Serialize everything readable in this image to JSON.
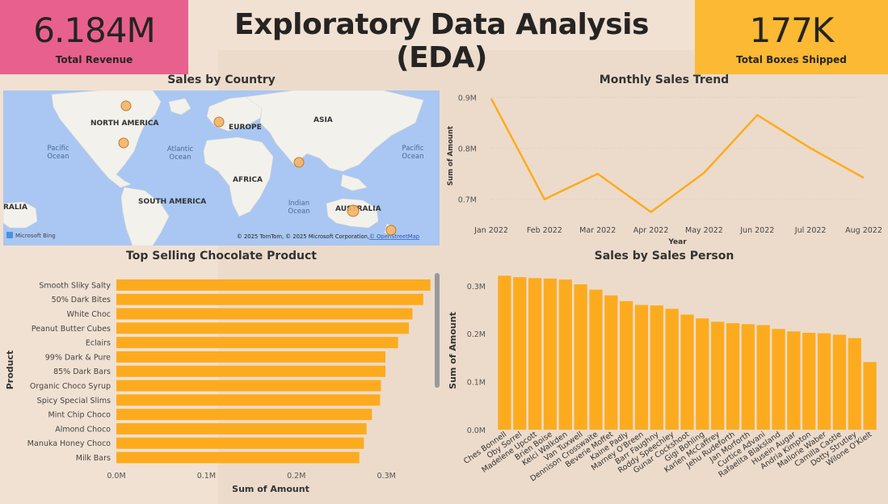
{
  "header": {
    "title": "Exploratory Data Analysis (EDA)",
    "kpis": [
      {
        "value": "6.184M",
        "label": "Total Revenue",
        "color": "#e8608d"
      },
      {
        "value": "177K",
        "label": "Total Boxes Shipped",
        "color": "#fbb934"
      }
    ]
  },
  "map": {
    "title": "Sales by Country",
    "labels": [
      "NORTH AMERICA",
      "EUROPE",
      "ASIA",
      "AFRICA",
      "SOUTH AMERICA",
      "AUSTRALIA",
      "RALIA"
    ],
    "ocean_labels": [
      "Pacific",
      "Ocean",
      "Atlantic",
      "Ocean",
      "Indian",
      "Ocean",
      "Pacific",
      "Ocean"
    ],
    "attribution": "© 2025 TomTom, © 2025 Microsoft Corporation,",
    "attribution_link": "© OpenStreetMap",
    "bing_label": "Microsoft Bing"
  },
  "colors": {
    "bar": "#fdab1e",
    "line": "#fdab1e",
    "water": "#a8c8f0",
    "land": "#f2f0ea"
  },
  "chart_data": [
    {
      "type": "line",
      "title": "Monthly Sales Trend",
      "xlabel": "Year",
      "ylabel": "Sum of Amount",
      "categories": [
        "Jan 2022",
        "Feb 2022",
        "Mar 2022",
        "Apr 2022",
        "May 2022",
        "Jun 2022",
        "Jul 2022",
        "Aug 2022"
      ],
      "values": [
        0.897,
        0.7,
        0.75,
        0.675,
        0.752,
        0.865,
        0.8,
        0.742
      ],
      "y_ticks": [
        {
          "v": 0.7,
          "label": "0.7M"
        },
        {
          "v": 0.8,
          "label": "0.8M"
        },
        {
          "v": 0.9,
          "label": "0.9M"
        }
      ],
      "ylim": [
        0.66,
        0.91
      ],
      "grid": true
    },
    {
      "type": "bar",
      "orientation": "horizontal",
      "title": "Top Selling Chocolate Product",
      "xlabel": "Sum of Amount",
      "ylabel": "Product",
      "categories": [
        "Smooth Sliky Salty",
        "50% Dark Bites",
        "White Choc",
        "Peanut Butter Cubes",
        "Eclairs",
        "99% Dark & Pure",
        "85% Dark Bars",
        "Organic Choco Syrup",
        "Spicy Special Slims",
        "Mint Chip Choco",
        "Almond Choco",
        "Manuka Honey Choco",
        "Milk Bars"
      ],
      "values": [
        0.349,
        0.341,
        0.329,
        0.325,
        0.313,
        0.299,
        0.299,
        0.294,
        0.293,
        0.284,
        0.278,
        0.275,
        0.27
      ],
      "x_ticks": [
        {
          "v": 0,
          "label": "0.0M"
        },
        {
          "v": 0.1,
          "label": "0.1M"
        },
        {
          "v": 0.2,
          "label": "0.2M"
        },
        {
          "v": 0.3,
          "label": "0.3M"
        }
      ],
      "xlim": [
        0,
        0.36
      ]
    },
    {
      "type": "bar",
      "title": "Sales by Sales Person",
      "xlabel": "",
      "ylabel": "Sum of Amount",
      "categories": [
        "Ches Bonnell",
        "Oby Sorrel",
        "Madelene Upcott",
        "Brien Boise",
        "Kelci Walkden",
        "Van Tuxwell",
        "Dennison Crosswaite",
        "Beverie Moffet",
        "Kaine Padly",
        "Marney O'Breen",
        "Barr Faughny",
        "Roddy Speechley",
        "Gunar Cockshoot",
        "Gigi Bohling",
        "Karlen McCaffrey",
        "Jehu Rudeforth",
        "Jan Morforth",
        "Curtice Advani",
        "Rafaelita Blaksland",
        "Husein Augar",
        "Andria Kimpton",
        "Mallorie Waber",
        "Camilla Castle",
        "Dotty Strutley",
        "Wilone O'Kielt"
      ],
      "values": [
        0.321,
        0.318,
        0.316,
        0.315,
        0.313,
        0.303,
        0.292,
        0.28,
        0.268,
        0.26,
        0.259,
        0.252,
        0.24,
        0.232,
        0.225,
        0.222,
        0.22,
        0.218,
        0.21,
        0.205,
        0.202,
        0.201,
        0.198,
        0.191,
        0.141
      ],
      "y_ticks": [
        {
          "v": 0,
          "label": "0.0M"
        },
        {
          "v": 0.1,
          "label": "0.1M"
        },
        {
          "v": 0.2,
          "label": "0.2M"
        },
        {
          "v": 0.3,
          "label": "0.3M"
        }
      ],
      "ylim": [
        0,
        0.33
      ]
    }
  ]
}
